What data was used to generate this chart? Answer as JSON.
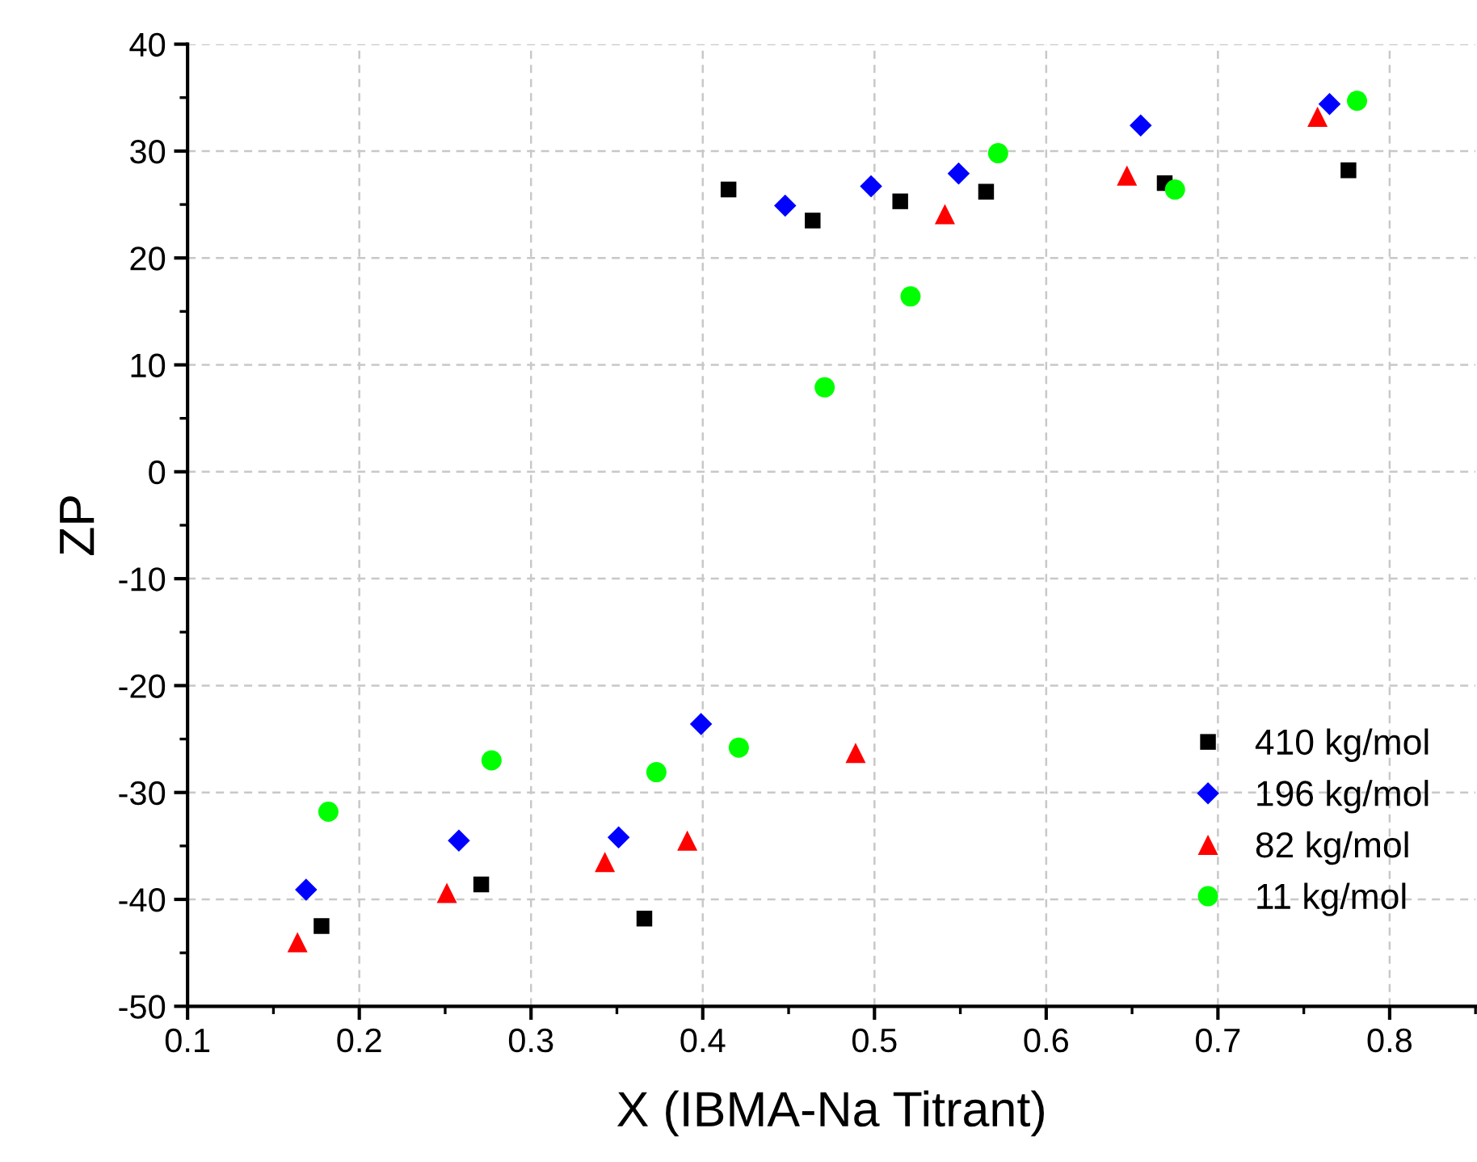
{
  "chart_data": {
    "type": "scatter",
    "xlabel": "X (IBMA-Na Titrant)",
    "ylabel": "ZP",
    "xlim": [
      0.1,
      0.85
    ],
    "xticks": [
      0.1,
      0.2,
      0.3,
      0.4,
      0.5,
      0.6,
      0.7,
      0.8
    ],
    "ylim": [
      -50,
      40
    ],
    "yticks": [
      -50,
      -40,
      -30,
      -20,
      -10,
      0,
      10,
      20,
      30,
      40
    ],
    "grid": true,
    "legend": "bottom right",
    "series": [
      {
        "name": "410 kg/mol",
        "color": "#000000",
        "marker": "square",
        "x": [
          0.178,
          0.271,
          0.366,
          0.415,
          0.464,
          0.515,
          0.565,
          0.669,
          0.776
        ],
        "values": [
          -42.5,
          -38.6,
          -41.8,
          26.4,
          23.5,
          25.3,
          26.2,
          27.0,
          28.2
        ]
      },
      {
        "name": "196 kg/mol",
        "color": "#0000ff",
        "marker": "diamond",
        "x": [
          0.169,
          0.258,
          0.351,
          0.399,
          0.448,
          0.498,
          0.549,
          0.655,
          0.765
        ],
        "values": [
          -39.1,
          -34.5,
          -34.2,
          -23.6,
          24.9,
          26.7,
          27.9,
          32.4,
          34.4
        ]
      },
      {
        "name": "82 kg/mol",
        "color": "#ff0000",
        "marker": "triangle",
        "x": [
          0.164,
          0.251,
          0.343,
          0.391,
          0.489,
          0.541,
          0.647,
          0.758
        ],
        "values": [
          -44.0,
          -39.4,
          -36.5,
          -34.5,
          -26.3,
          24.1,
          27.7,
          33.2
        ]
      },
      {
        "name": "11 kg/mol",
        "color": "#00ff00",
        "marker": "circle",
        "x": [
          0.182,
          0.277,
          0.373,
          0.421,
          0.471,
          0.521,
          0.572,
          0.675,
          0.781
        ],
        "values": [
          -31.8,
          -27.0,
          -28.1,
          -25.8,
          7.9,
          16.4,
          29.8,
          26.4,
          34.7
        ]
      }
    ]
  }
}
